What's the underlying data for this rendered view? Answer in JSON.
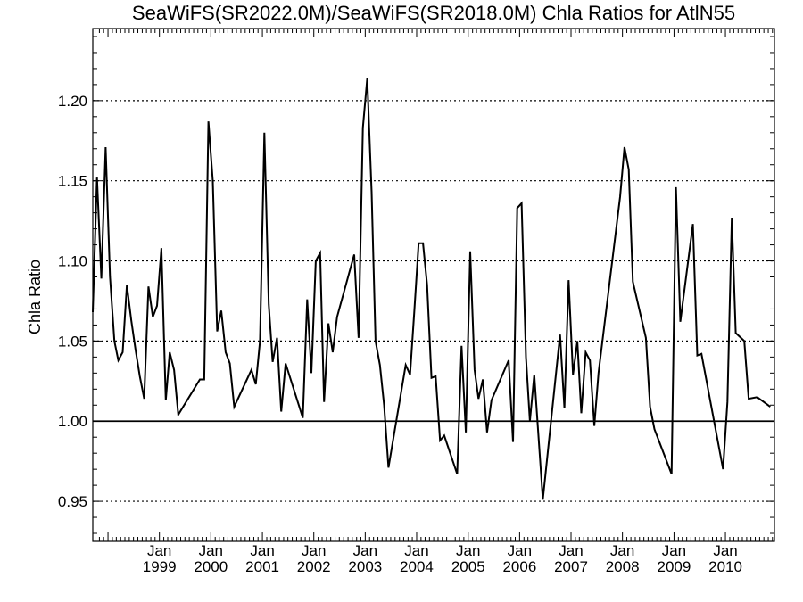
{
  "chart_data": {
    "type": "line",
    "title": "SeaWiFS(SR2022.0M)/SeaWiFS(SR2018.0M)  Chla Ratios for AtlN55",
    "xlabel": "",
    "ylabel": "Chla Ratio",
    "xlim": [
      "1997-09-15",
      "2010-12-15"
    ],
    "ylim": [
      0.925,
      1.245
    ],
    "y_ticks": [
      0.95,
      1.0,
      1.05,
      1.1,
      1.15,
      1.2
    ],
    "y_tick_labels": [
      "0.95",
      "1.00",
      "1.05",
      "1.10",
      "1.15",
      "1.20"
    ],
    "x_ticks": [
      {
        "date": "1999-01-01",
        "month": "Jan",
        "year": "1999"
      },
      {
        "date": "2000-01-01",
        "month": "Jan",
        "year": "2000"
      },
      {
        "date": "2001-01-01",
        "month": "Jan",
        "year": "2001"
      },
      {
        "date": "2002-01-01",
        "month": "Jan",
        "year": "2002"
      },
      {
        "date": "2003-01-01",
        "month": "Jan",
        "year": "2003"
      },
      {
        "date": "2004-01-01",
        "month": "Jan",
        "year": "2004"
      },
      {
        "date": "2005-01-01",
        "month": "Jan",
        "year": "2005"
      },
      {
        "date": "2006-01-01",
        "month": "Jan",
        "year": "2006"
      },
      {
        "date": "2007-01-01",
        "month": "Jan",
        "year": "2007"
      },
      {
        "date": "2008-01-01",
        "month": "Jan",
        "year": "2008"
      },
      {
        "date": "2009-01-01",
        "month": "Jan",
        "year": "2009"
      },
      {
        "date": "2010-01-01",
        "month": "Jan",
        "year": "2010"
      }
    ],
    "grid": "dotted horizontal lines at y ticks",
    "reference_line": 1.0,
    "series": [
      {
        "color": "#000000",
        "points": [
          [
            "1997-09-15",
            1.068
          ],
          [
            "1997-10-15",
            1.152
          ],
          [
            "1997-11-15",
            1.089
          ],
          [
            "1997-12-15",
            1.171
          ],
          [
            "1998-01-15",
            1.09
          ],
          [
            "1998-02-15",
            1.05
          ],
          [
            "1998-03-15",
            1.038
          ],
          [
            "1998-04-15",
            1.043
          ],
          [
            "1998-05-15",
            1.085
          ],
          [
            "1998-06-15",
            1.063
          ],
          [
            "1998-07-15",
            1.045
          ],
          [
            "1998-08-15",
            1.028
          ],
          [
            "1998-09-15",
            1.014
          ],
          [
            "1998-10-15",
            1.084
          ],
          [
            "1998-11-15",
            1.065
          ],
          [
            "1998-12-15",
            1.072
          ],
          [
            "1999-01-15",
            1.108
          ],
          [
            "1999-02-15",
            1.013
          ],
          [
            "1999-03-15",
            1.043
          ],
          [
            "1999-04-15",
            1.032
          ],
          [
            "1999-05-15",
            1.004
          ],
          [
            "1999-10-15",
            1.026
          ],
          [
            "1999-11-15",
            1.026
          ],
          [
            "1999-12-15",
            1.187
          ],
          [
            "2000-01-15",
            1.15
          ],
          [
            "2000-02-15",
            1.056
          ],
          [
            "2000-03-15",
            1.069
          ],
          [
            "2000-04-15",
            1.043
          ],
          [
            "2000-05-15",
            1.036
          ],
          [
            "2000-06-15",
            1.009
          ],
          [
            "2000-10-15",
            1.032
          ],
          [
            "2000-11-15",
            1.023
          ],
          [
            "2000-12-15",
            1.05
          ],
          [
            "2001-01-15",
            1.18
          ],
          [
            "2001-02-15",
            1.073
          ],
          [
            "2001-03-15",
            1.037
          ],
          [
            "2001-04-15",
            1.052
          ],
          [
            "2001-05-15",
            1.006
          ],
          [
            "2001-06-15",
            1.036
          ],
          [
            "2001-10-15",
            1.002
          ],
          [
            "2001-11-15",
            1.076
          ],
          [
            "2001-12-15",
            1.03
          ],
          [
            "2002-01-15",
            1.1
          ],
          [
            "2002-02-15",
            1.105
          ],
          [
            "2002-03-15",
            1.012
          ],
          [
            "2002-04-15",
            1.061
          ],
          [
            "2002-05-15",
            1.043
          ],
          [
            "2002-06-15",
            1.065
          ],
          [
            "2002-10-15",
            1.104
          ],
          [
            "2002-11-15",
            1.052
          ],
          [
            "2002-12-15",
            1.183
          ],
          [
            "2003-01-15",
            1.214
          ],
          [
            "2003-02-15",
            1.143
          ],
          [
            "2003-03-15",
            1.05
          ],
          [
            "2003-04-15",
            1.035
          ],
          [
            "2003-05-15",
            1.01
          ],
          [
            "2003-06-15",
            0.971
          ],
          [
            "2003-10-15",
            1.035
          ],
          [
            "2003-11-15",
            1.029
          ],
          [
            "2003-12-15",
            1.068
          ],
          [
            "2004-01-15",
            1.111
          ],
          [
            "2004-02-15",
            1.111
          ],
          [
            "2004-03-15",
            1.085
          ],
          [
            "2004-04-15",
            1.027
          ],
          [
            "2004-05-15",
            1.028
          ],
          [
            "2004-06-15",
            0.988
          ],
          [
            "2004-07-15",
            0.991
          ],
          [
            "2004-10-15",
            0.967
          ],
          [
            "2004-11-15",
            1.047
          ],
          [
            "2004-12-15",
            0.993
          ],
          [
            "2005-01-15",
            1.106
          ],
          [
            "2005-02-15",
            1.032
          ],
          [
            "2005-03-15",
            1.014
          ],
          [
            "2005-04-15",
            1.026
          ],
          [
            "2005-05-15",
            0.993
          ],
          [
            "2005-06-15",
            1.013
          ],
          [
            "2005-10-15",
            1.038
          ],
          [
            "2005-11-15",
            0.987
          ],
          [
            "2005-12-15",
            1.133
          ],
          [
            "2006-01-15",
            1.136
          ],
          [
            "2006-02-15",
            1.04
          ],
          [
            "2006-03-15",
            1.0
          ],
          [
            "2006-04-15",
            1.029
          ],
          [
            "2006-06-15",
            0.951
          ],
          [
            "2006-10-15",
            1.054
          ],
          [
            "2006-11-15",
            1.008
          ],
          [
            "2006-12-15",
            1.088
          ],
          [
            "2007-01-15",
            1.029
          ],
          [
            "2007-02-15",
            1.05
          ],
          [
            "2007-03-15",
            1.005
          ],
          [
            "2007-04-15",
            1.043
          ],
          [
            "2007-05-15",
            1.038
          ],
          [
            "2007-06-15",
            0.997
          ],
          [
            "2007-07-15",
            1.03
          ],
          [
            "2007-12-15",
            1.14
          ],
          [
            "2008-01-15",
            1.171
          ],
          [
            "2008-02-15",
            1.157
          ],
          [
            "2008-03-15",
            1.087
          ],
          [
            "2008-06-15",
            1.052
          ],
          [
            "2008-07-15",
            1.009
          ],
          [
            "2008-08-15",
            0.995
          ],
          [
            "2008-12-15",
            0.967
          ],
          [
            "2009-01-15",
            1.146
          ],
          [
            "2009-02-15",
            1.062
          ],
          [
            "2009-05-15",
            1.123
          ],
          [
            "2009-06-15",
            1.041
          ],
          [
            "2009-07-15",
            1.042
          ],
          [
            "2009-12-15",
            0.97
          ],
          [
            "2010-01-15",
            1.012
          ],
          [
            "2010-02-15",
            1.127
          ],
          [
            "2010-03-15",
            1.055
          ],
          [
            "2010-05-15",
            1.05
          ],
          [
            "2010-06-15",
            1.014
          ],
          [
            "2010-08-15",
            1.015
          ],
          [
            "2010-11-15",
            1.009
          ]
        ]
      }
    ]
  }
}
